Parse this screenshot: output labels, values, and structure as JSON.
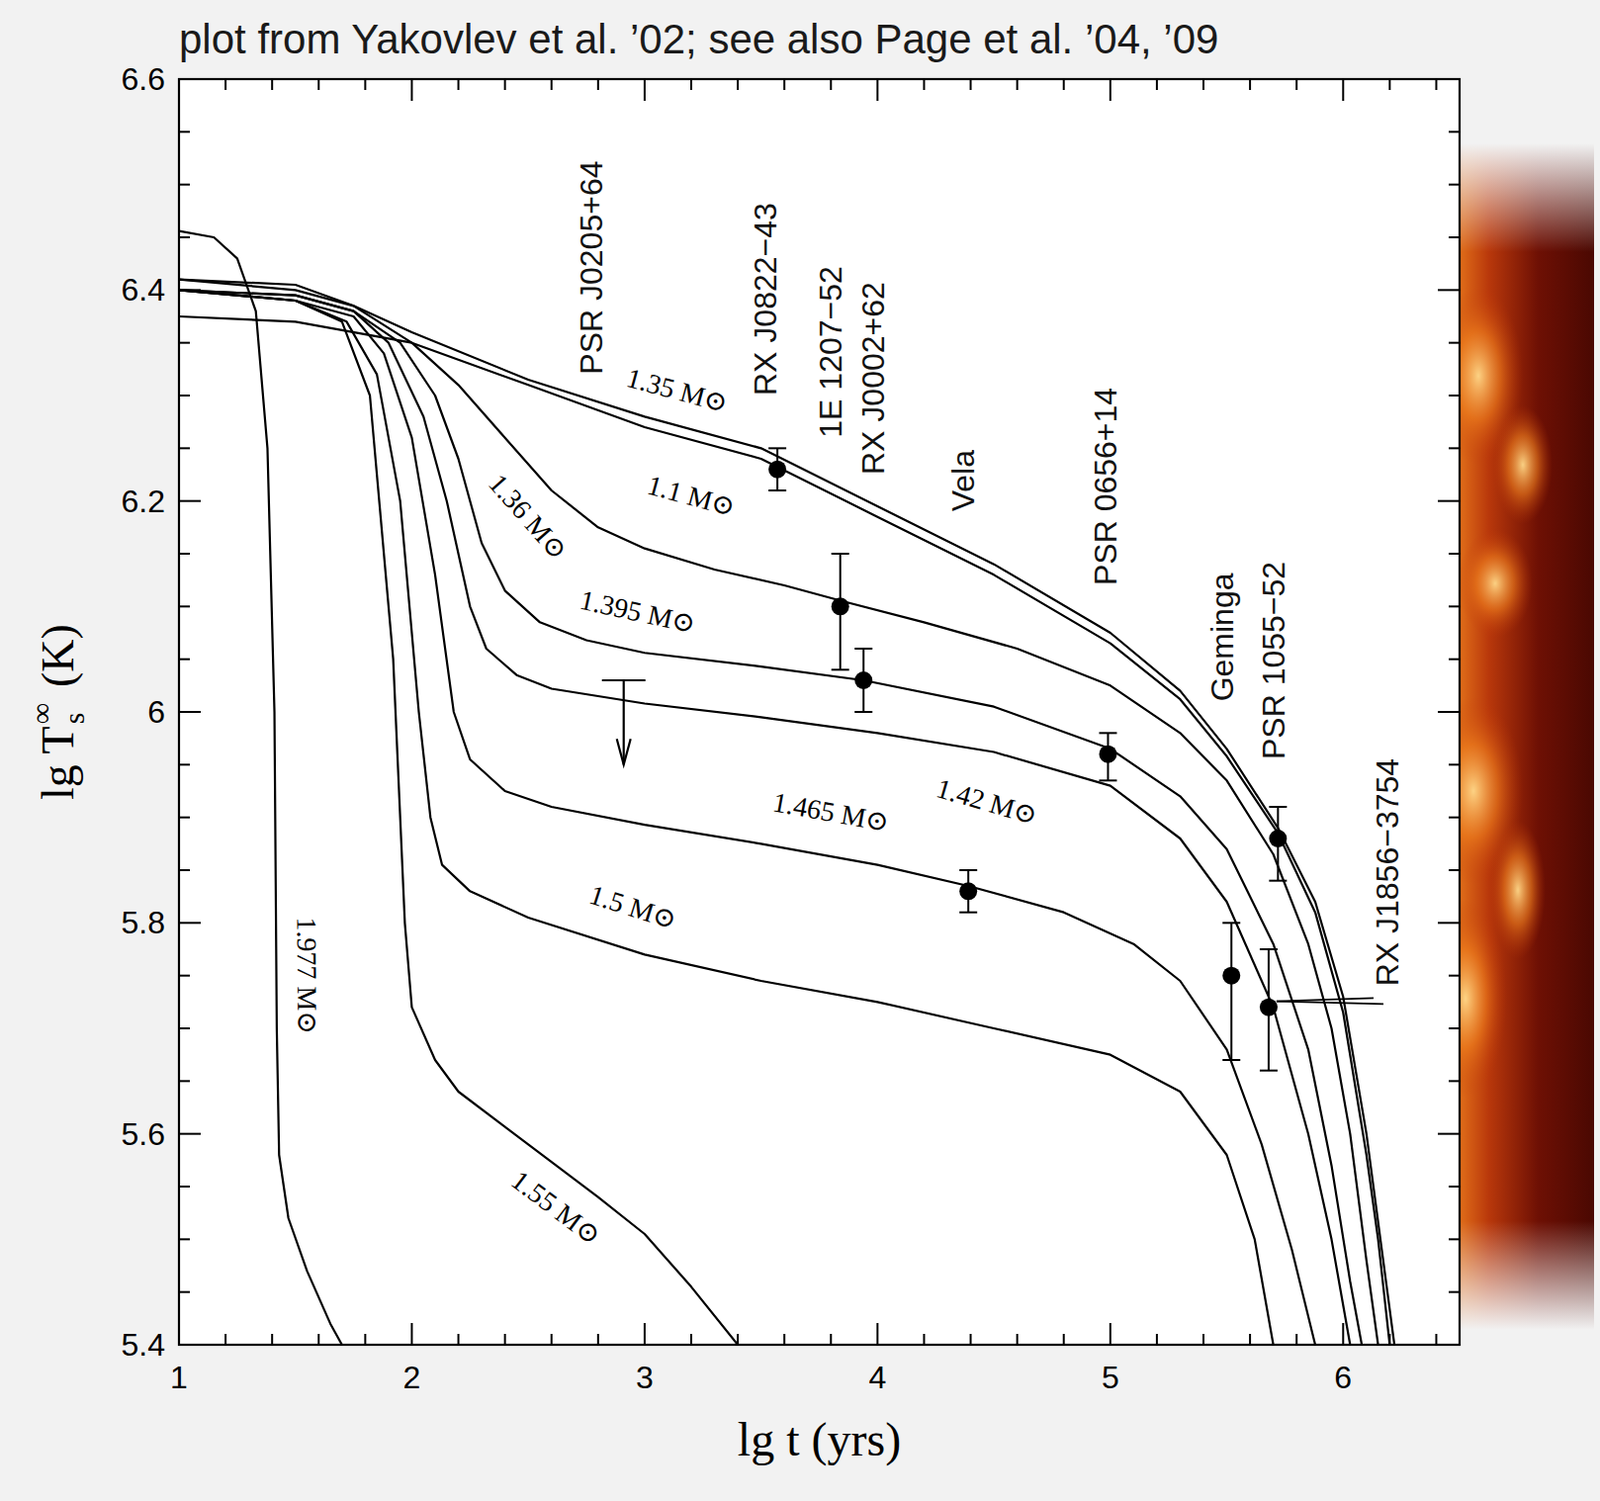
{
  "chart_data": {
    "type": "line",
    "title": "plot from Yakovlev et al. ’02; see also Page et al. ’04, ’09",
    "xlabel": "lg t (yrs)",
    "ylabel": {
      "text": "lg T",
      "superscript": "∞",
      "subscript": "s",
      "unit": "(K)"
    },
    "xlim": [
      1,
      6.5
    ],
    "ylim": [
      5.4,
      6.6
    ],
    "xticks": [
      1,
      2,
      3,
      4,
      5,
      6
    ],
    "yticks": [
      5.4,
      5.6,
      5.8,
      6,
      6.2,
      6.4,
      6.6
    ],
    "xticks_minor": [
      1.2,
      1.4,
      1.6,
      1.8,
      2.2,
      2.4,
      2.6,
      2.8,
      3.2,
      3.4,
      3.6,
      3.8,
      4.2,
      4.4,
      4.6,
      4.8,
      5.2,
      5.4,
      5.6,
      5.8,
      6.2,
      6.4
    ],
    "yticks_minor": [
      5.45,
      5.5,
      5.55,
      5.65,
      5.7,
      5.75,
      5.85,
      5.9,
      5.95,
      6.05,
      6.1,
      6.15,
      6.25,
      6.3,
      6.35,
      6.45,
      6.5,
      6.55
    ],
    "grid": false,
    "series": [
      {
        "name": "1.1 M⊙",
        "color": "#000000",
        "line_style": "solid",
        "x": [
          1,
          1.5,
          2,
          2.5,
          3,
          3.5,
          4,
          4.5,
          5,
          5.3,
          5.5,
          5.72,
          5.88,
          6.0,
          6.1,
          6.15,
          6.2
        ],
        "values": [
          6.375,
          6.37,
          6.35,
          6.31,
          6.27,
          6.24,
          6.185,
          6.13,
          6.065,
          6.012,
          5.958,
          5.885,
          5.81,
          5.715,
          5.58,
          5.5,
          5.4
        ],
        "label_x": 3.2,
        "label_y": 6.205
      },
      {
        "name": "1.35 M⊙",
        "color": "#000000",
        "line_style": "solid",
        "x": [
          1,
          1.5,
          1.75,
          2,
          2.5,
          3,
          3.5,
          4,
          4.5,
          5,
          5.3,
          5.5,
          5.72,
          5.88,
          6.0,
          6.1,
          6.16,
          6.22
        ],
        "values": [
          6.41,
          6.405,
          6.385,
          6.36,
          6.315,
          6.28,
          6.25,
          6.195,
          6.14,
          6.075,
          6.02,
          5.965,
          5.89,
          5.82,
          5.73,
          5.6,
          5.5,
          5.4
        ],
        "label_x": 3.14,
        "label_y": 6.305
      },
      {
        "name": "1.36 M⊙",
        "color": "#000000",
        "line_style": "solid",
        "x": [
          1,
          1.5,
          1.75,
          2,
          2.2,
          2.4,
          2.6,
          2.8,
          3,
          3.3,
          3.6,
          3.85,
          4.2,
          4.6,
          5,
          5.3,
          5.5,
          5.7,
          5.85,
          5.95,
          6.03,
          6.1,
          6.15
        ],
        "values": [
          6.41,
          6.4,
          6.385,
          6.35,
          6.31,
          6.26,
          6.21,
          6.175,
          6.155,
          6.135,
          6.12,
          6.105,
          6.085,
          6.06,
          6.025,
          5.98,
          5.935,
          5.865,
          5.78,
          5.7,
          5.6,
          5.48,
          5.4
        ],
        "label_x": 2.5,
        "label_y": 6.185
      },
      {
        "name": "1.395 M⊙",
        "color": "#000000",
        "line_style": "solid",
        "x": [
          1,
          1.5,
          1.75,
          1.95,
          2.1,
          2.2,
          2.3,
          2.4,
          2.55,
          2.75,
          3,
          3.5,
          3.94,
          4.5,
          5,
          5.3,
          5.5,
          5.7,
          5.85,
          5.95,
          6.03,
          6.08
        ],
        "values": [
          6.4,
          6.395,
          6.38,
          6.35,
          6.3,
          6.24,
          6.16,
          6.115,
          6.085,
          6.068,
          6.056,
          6.043,
          6.03,
          6.005,
          5.965,
          5.92,
          5.87,
          5.78,
          5.68,
          5.57,
          5.46,
          5.4
        ],
        "label_x": 2.97,
        "label_y": 6.095
      },
      {
        "name": "1.42 M⊙",
        "color": "#000000",
        "line_style": "solid",
        "x": [
          1,
          1.5,
          1.75,
          1.9,
          2.05,
          2.15,
          2.25,
          2.32,
          2.45,
          2.6,
          3,
          3.5,
          4,
          4.5,
          5,
          5.3,
          5.5,
          5.7,
          5.85,
          5.95,
          6.03
        ],
        "values": [
          6.4,
          6.395,
          6.38,
          6.35,
          6.28,
          6.2,
          6.1,
          6.06,
          6.035,
          6.022,
          6.008,
          5.995,
          5.98,
          5.962,
          5.93,
          5.88,
          5.82,
          5.72,
          5.6,
          5.5,
          5.4
        ],
        "label_x": 4.47,
        "label_y": 5.915
      },
      {
        "name": "1.465 M⊙",
        "color": "#000000",
        "line_style": "solid",
        "x": [
          1,
          1.5,
          1.75,
          1.88,
          2,
          2.1,
          2.18,
          2.25,
          2.4,
          2.6,
          3,
          3.5,
          4,
          4.39,
          4.8,
          5.1,
          5.3,
          5.5,
          5.65,
          5.78,
          5.88
        ],
        "values": [
          6.4,
          6.39,
          6.375,
          6.34,
          6.26,
          6.13,
          6,
          5.955,
          5.925,
          5.91,
          5.893,
          5.875,
          5.855,
          5.835,
          5.81,
          5.78,
          5.745,
          5.68,
          5.59,
          5.49,
          5.4
        ],
        "label_x": 3.8,
        "label_y": 5.905
      },
      {
        "name": "1.5 M⊙",
        "color": "#000000",
        "line_style": "solid",
        "x": [
          1,
          1.5,
          1.72,
          1.85,
          1.95,
          2.03,
          2.08,
          2.13,
          2.25,
          2.5,
          3,
          3.5,
          4,
          4.5,
          5,
          5.3,
          5.5,
          5.62,
          5.7
        ],
        "values": [
          6.4,
          6.39,
          6.37,
          6.32,
          6.2,
          6,
          5.9,
          5.855,
          5.83,
          5.805,
          5.77,
          5.745,
          5.725,
          5.7,
          5.675,
          5.64,
          5.58,
          5.5,
          5.4
        ],
        "label_x": 2.95,
        "label_y": 5.815
      },
      {
        "name": "1.55 M⊙",
        "color": "#000000",
        "line_style": "solid",
        "x": [
          1,
          1.5,
          1.7,
          1.82,
          1.92,
          1.97,
          2,
          2.1,
          2.2,
          2.5,
          2.8,
          3,
          3.2,
          3.4
        ],
        "values": [
          6.4,
          6.39,
          6.37,
          6.3,
          6.05,
          5.8,
          5.72,
          5.67,
          5.64,
          5.59,
          5.54,
          5.505,
          5.455,
          5.4
        ],
        "label_x": 2.62,
        "label_y": 5.53
      },
      {
        "name": "1.977 M⊙",
        "color": "#000000",
        "line_style": "solid",
        "x": [
          1,
          1.15,
          1.25,
          1.33,
          1.38,
          1.41,
          1.42,
          1.43,
          1.47,
          1.55,
          1.65,
          1.7
        ],
        "values": [
          6.456,
          6.45,
          6.43,
          6.38,
          6.25,
          6,
          5.7,
          5.58,
          5.52,
          5.47,
          5.42,
          5.4
        ],
        "label_x": 1.55,
        "label_y": 5.75
      }
    ],
    "points": [
      {
        "name": "PSR J0205+64",
        "x": 2.91,
        "y": 6.03,
        "upper_limit": true,
        "arrow_end": 5.95,
        "label_x": 2.77,
        "label_y": 6.32
      },
      {
        "name": "RX J0822−43",
        "x": 3.57,
        "y": 6.23,
        "yerr_minus": 0.02,
        "yerr_plus": 0.02,
        "label_x": 3.52,
        "label_y": 6.3
      },
      {
        "name": "1E 1207−52",
        "x": 3.84,
        "y": 6.1,
        "yerr_minus": 0.06,
        "yerr_plus": 0.05,
        "label_x": 3.8,
        "label_y": 6.26
      },
      {
        "name": "RX J0002+62",
        "x": 3.94,
        "y": 6.03,
        "yerr_minus": 0.03,
        "yerr_plus": 0.03,
        "label_x": 3.98,
        "label_y": 6.225
      },
      {
        "name": "Vela",
        "x": 4.39,
        "y": 5.83,
        "yerr_minus": 0.02,
        "yerr_plus": 0.02,
        "label_x": 4.37,
        "label_y": 6.19
      },
      {
        "name": "PSR 0656+14",
        "x": 4.99,
        "y": 5.96,
        "yerr_minus": 0.025,
        "yerr_plus": 0.02,
        "label_x": 4.98,
        "label_y": 6.12
      },
      {
        "name": "Geminga",
        "x": 5.52,
        "y": 5.75,
        "yerr_minus": 0.08,
        "yerr_plus": 0.05,
        "label_x": 5.48,
        "label_y": 6.01
      },
      {
        "name": "PSR 1055−52",
        "x": 5.72,
        "y": 5.88,
        "yerr_minus": 0.04,
        "yerr_plus": 0.03,
        "label_x": 5.7,
        "label_y": 5.955
      },
      {
        "name": "RX J1856−3754",
        "x": 5.68,
        "y": 5.72,
        "yerr_minus": 0.06,
        "yerr_plus": 0.055,
        "label_x": 6.19,
        "label_y": 5.74
      }
    ]
  }
}
